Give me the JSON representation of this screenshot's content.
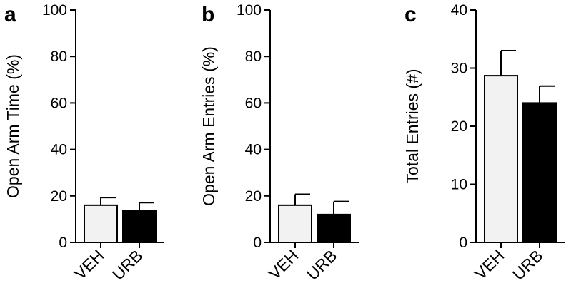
{
  "chart_data": [
    {
      "type": "bar",
      "panel": "a",
      "categories": [
        "VEH",
        "URB"
      ],
      "values": [
        16,
        13.5
      ],
      "errors": [
        3.3,
        3.6
      ],
      "ylabel": "Open Arm Time (%)",
      "ylim": [
        0,
        100
      ],
      "yticks": [
        0,
        20,
        40,
        60,
        80,
        100
      ],
      "colors": [
        "#f2f2f2",
        "#000000"
      ],
      "grid": false,
      "legend": "none"
    },
    {
      "type": "bar",
      "panel": "b",
      "categories": [
        "VEH",
        "URB"
      ],
      "values": [
        16,
        12
      ],
      "errors": [
        4.7,
        5.6
      ],
      "ylabel": "Open Arm Entries (%)",
      "ylim": [
        0,
        100
      ],
      "yticks": [
        0,
        20,
        40,
        60,
        80,
        100
      ],
      "colors": [
        "#f2f2f2",
        "#000000"
      ],
      "grid": false,
      "legend": "none"
    },
    {
      "type": "bar",
      "panel": "c",
      "categories": [
        "VEH",
        "URB"
      ],
      "values": [
        28.7,
        24
      ],
      "errors": [
        4.3,
        2.9
      ],
      "ylabel": "Total Entries (#)",
      "ylim": [
        0,
        40
      ],
      "yticks": [
        0,
        10,
        20,
        30,
        40
      ],
      "colors": [
        "#f2f2f2",
        "#000000"
      ],
      "grid": false,
      "legend": "none"
    }
  ]
}
